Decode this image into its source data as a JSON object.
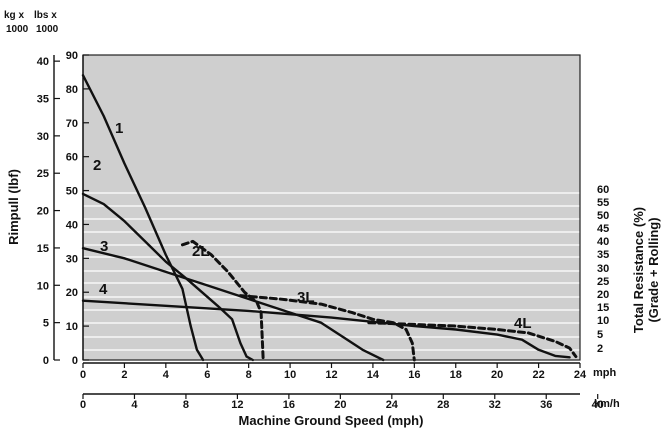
{
  "chart_data": {
    "type": "line",
    "xlabel": "Machine Ground Speed (mph)",
    "ylabel": "Rimpull (lbf)",
    "y2label": [
      "Total Resistance (%)",
      "(Grade + Rolling)"
    ],
    "x_unit_mph": "mph",
    "x_unit_kmh": "km/h",
    "left_header_kg": [
      "kg x",
      "1000"
    ],
    "left_header_lbs": [
      "lbs x",
      "1000"
    ],
    "x_range_mph": [
      0,
      24
    ],
    "y_range_lbs_x1000": [
      0,
      90
    ],
    "x_ticks_mph": [
      "0",
      "2",
      "4",
      "6",
      "8",
      "10",
      "12",
      "14",
      "16",
      "18",
      "20",
      "22",
      "24"
    ],
    "x_ticks_kmh": [
      "0",
      "4",
      "8",
      "12",
      "16",
      "20",
      "24",
      "28",
      "32",
      "36",
      "40"
    ],
    "y_ticks_lbs": [
      "0",
      "10",
      "20",
      "30",
      "40",
      "50",
      "60",
      "70",
      "80",
      "90"
    ],
    "y_ticks_kg": [
      "0",
      "5",
      "10",
      "15",
      "20",
      "25",
      "30",
      "35",
      "40"
    ],
    "resistance_lines_percent": [
      "2",
      "5",
      "10",
      "15",
      "20",
      "25",
      "30",
      "35",
      "40",
      "45",
      "50",
      "55",
      "60"
    ],
    "grid": "horizontal resistance lines",
    "series": [
      {
        "name": "1",
        "style": "solid",
        "points": [
          [
            0,
            84
          ],
          [
            1,
            72
          ],
          [
            2,
            58
          ],
          [
            3,
            45
          ],
          [
            4,
            31
          ],
          [
            4.8,
            21
          ],
          [
            5.2,
            10
          ],
          [
            5.5,
            3
          ],
          [
            5.8,
            0
          ]
        ]
      },
      {
        "name": "2",
        "style": "solid",
        "points": [
          [
            0,
            49
          ],
          [
            1,
            46
          ],
          [
            2,
            41
          ],
          [
            3,
            35
          ],
          [
            4,
            29
          ],
          [
            5,
            24
          ],
          [
            6.5,
            16
          ],
          [
            7.2,
            12
          ],
          [
            7.6,
            5
          ],
          [
            7.9,
            1
          ],
          [
            8.2,
            0
          ]
        ]
      },
      {
        "name": "3",
        "style": "solid",
        "points": [
          [
            0,
            33
          ],
          [
            2,
            30
          ],
          [
            4,
            26
          ],
          [
            6,
            22
          ],
          [
            8,
            18
          ],
          [
            10,
            14
          ],
          [
            11.5,
            11
          ],
          [
            12.5,
            7
          ],
          [
            13.5,
            3
          ],
          [
            14.5,
            0
          ]
        ]
      },
      {
        "name": "4",
        "style": "solid",
        "points": [
          [
            0,
            17.5
          ],
          [
            4,
            16
          ],
          [
            8,
            14.5
          ],
          [
            12,
            12.5
          ],
          [
            16,
            10
          ],
          [
            18,
            9
          ],
          [
            20,
            7.5
          ],
          [
            21.2,
            6
          ],
          [
            22,
            3
          ],
          [
            22.8,
            1.2
          ],
          [
            23.5,
            0.8
          ]
        ]
      },
      {
        "name": "2L",
        "style": "dashed",
        "points": [
          [
            4.8,
            34
          ],
          [
            5.3,
            35
          ],
          [
            6.2,
            31
          ],
          [
            7.0,
            26
          ],
          [
            7.8,
            20
          ],
          [
            8.4,
            17
          ],
          [
            8.6,
            14
          ],
          [
            8.7,
            0
          ]
        ]
      },
      {
        "name": "3L",
        "style": "dashed",
        "points": [
          [
            7.6,
            19
          ],
          [
            9.5,
            18
          ],
          [
            11.5,
            16.5
          ],
          [
            13.0,
            14
          ],
          [
            14.0,
            12
          ],
          [
            15.0,
            11
          ],
          [
            15.6,
            9
          ],
          [
            15.9,
            5
          ],
          [
            16.0,
            0
          ]
        ]
      },
      {
        "name": "4L",
        "style": "dashed",
        "points": [
          [
            13.8,
            11
          ],
          [
            16,
            10.5
          ],
          [
            18,
            10
          ],
          [
            20,
            9
          ],
          [
            21.5,
            8
          ],
          [
            22.8,
            5.5
          ],
          [
            23.5,
            3.5
          ],
          [
            23.8,
            1
          ]
        ]
      }
    ]
  }
}
